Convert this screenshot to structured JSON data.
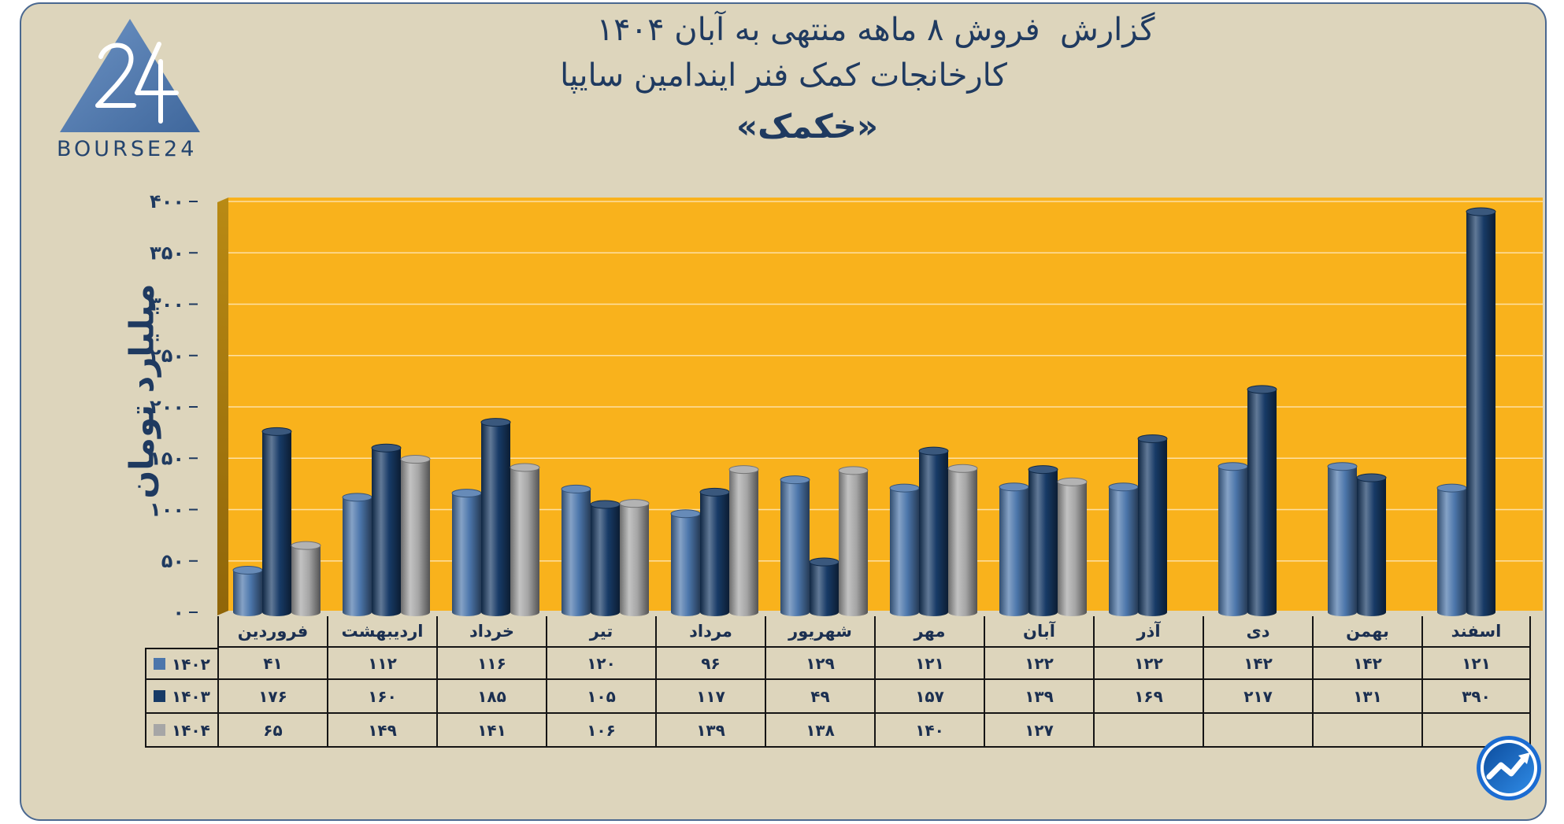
{
  "logo": {
    "wordmark": "BOURSE24",
    "mark": "24"
  },
  "chart_data": {
    "type": "bar",
    "title": [
      "گزارش  فروش ۸ ماهه منتهی به آبان ۱۴۰۴",
      "کارخانجات کمک فنر ایندامین سایپا",
      "«خکمک»"
    ],
    "categories": [
      "فروردین",
      "اردیبهشت",
      "خرداد",
      "تیر",
      "مرداد",
      "شهریور",
      "مهر",
      "آبان",
      "آذر",
      "دی",
      "بهمن",
      "اسفند"
    ],
    "series": [
      {
        "name": "۱۴۰۲",
        "color": "#4c76ab",
        "values": [
          41,
          112,
          116,
          120,
          96,
          129,
          121,
          122,
          122,
          142,
          142,
          121
        ]
      },
      {
        "name": "۱۴۰۳",
        "color": "#173a66",
        "values": [
          176,
          160,
          185,
          105,
          117,
          49,
          157,
          139,
          169,
          217,
          131,
          390
        ]
      },
      {
        "name": "۱۴۰۴",
        "color": "#a6a6a6",
        "values": [
          65,
          149,
          141,
          106,
          139,
          138,
          140,
          127,
          null,
          null,
          null,
          null
        ]
      }
    ],
    "ylabel": "میلیارد تومان",
    "ylim": [
      0,
      400
    ],
    "yticks": [
      0,
      50,
      100,
      150,
      200,
      250,
      300,
      350,
      400
    ],
    "ytick_labels": [
      "۰",
      "۵۰",
      "۱۰۰",
      "۱۵۰",
      "۲۰۰",
      "۲۵۰",
      "۳۰۰",
      "۳۵۰",
      "۴۰۰"
    ],
    "grid": true,
    "legend": "table-left",
    "plot_background": "#f9b21c"
  },
  "table": {
    "rows": [
      [
        "۴۱",
        "۱۱۲",
        "۱۱۶",
        "۱۲۰",
        "۹۶",
        "۱۲۹",
        "۱۲۱",
        "۱۲۲",
        "۱۲۲",
        "۱۴۲",
        "۱۴۲",
        "۱۲۱"
      ],
      [
        "۱۷۶",
        "۱۶۰",
        "۱۸۵",
        "۱۰۵",
        "۱۱۷",
        "۴۹",
        "۱۵۷",
        "۱۳۹",
        "۱۶۹",
        "۲۱۷",
        "۱۳۱",
        "۳۹۰"
      ],
      [
        "۶۵",
        "۱۴۹",
        "۱۴۱",
        "۱۰۶",
        "۱۳۹",
        "۱۳۸",
        "۱۴۰",
        "۱۲۷"
      ]
    ]
  },
  "icons": {
    "logo": "bourse24-triangle-logo-icon",
    "corner_badge": "trend-chart-icon"
  }
}
